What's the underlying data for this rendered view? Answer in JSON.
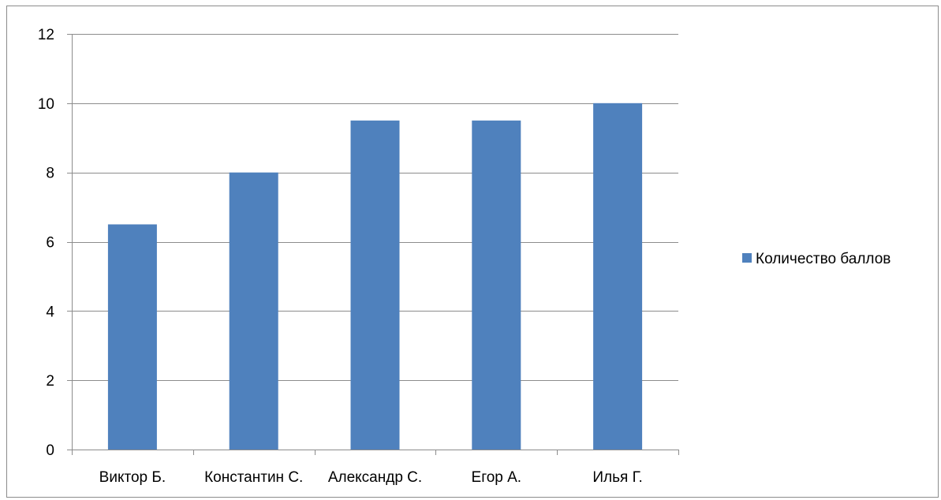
{
  "chart_data": {
    "type": "bar",
    "title": "",
    "xlabel": "",
    "ylabel": "",
    "categories": [
      "Виктор Б.",
      "Константин С.",
      "Александр С.",
      "Егор А.",
      "Илья Г."
    ],
    "series": [
      {
        "name": "Количество баллов",
        "values": [
          6.5,
          8,
          9.5,
          9.5,
          10
        ],
        "color": "#4f81bd"
      }
    ],
    "ylim": [
      0,
      12
    ],
    "yticks": [
      0,
      2,
      4,
      6,
      8,
      10,
      12
    ],
    "grid": true,
    "legend_position": "right"
  }
}
